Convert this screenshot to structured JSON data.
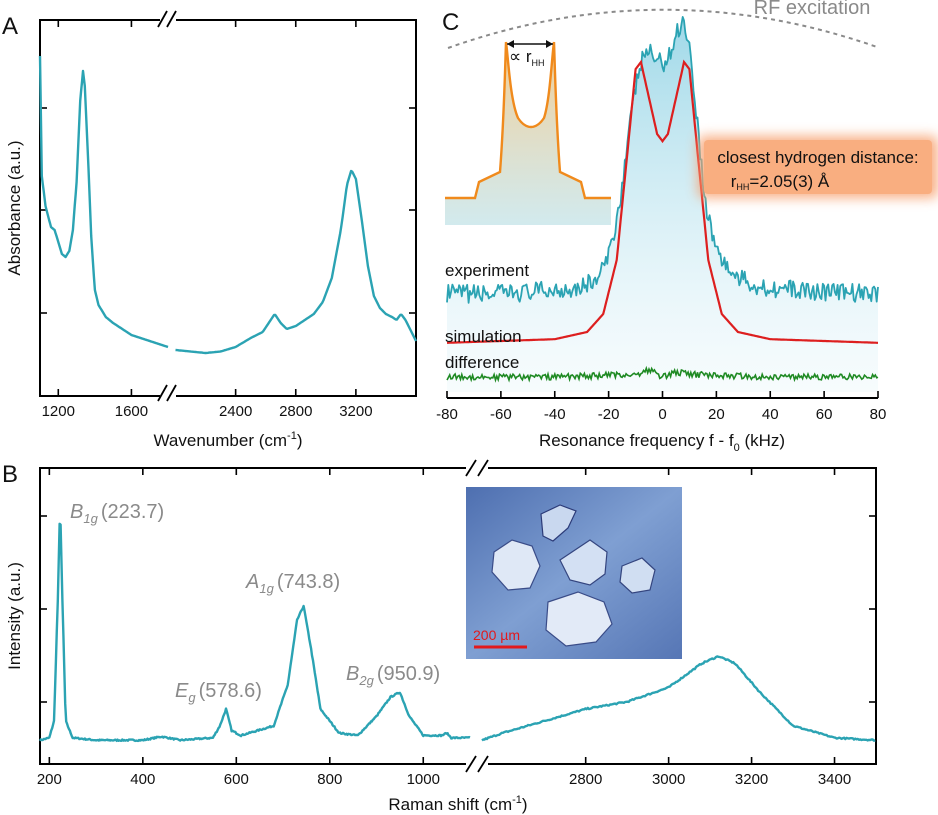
{
  "chart_data": [
    {
      "panel": "A",
      "type": "line",
      "xlabel": "Wavenumber (cm",
      "xlabel_sup": "-1",
      "xlabel_end": ")",
      "ylabel": "Absorbance (a.u.)",
      "xticks_left": [
        1200,
        1600
      ],
      "xticks_right": [
        2400,
        2800,
        3200
      ],
      "x_segments": [
        [
          1100,
          1800
        ],
        [
          1950,
          3600
        ]
      ],
      "color": "#2ba3b3",
      "points": [
        [
          1100,
          1.0
        ],
        [
          1110,
          0.6
        ],
        [
          1130,
          0.5
        ],
        [
          1160,
          0.43
        ],
        [
          1180,
          0.42
        ],
        [
          1200,
          0.38
        ],
        [
          1220,
          0.34
        ],
        [
          1240,
          0.33
        ],
        [
          1260,
          0.35
        ],
        [
          1280,
          0.42
        ],
        [
          1300,
          0.58
        ],
        [
          1320,
          0.85
        ],
        [
          1335,
          0.95
        ],
        [
          1345,
          0.9
        ],
        [
          1360,
          0.7
        ],
        [
          1380,
          0.4
        ],
        [
          1400,
          0.22
        ],
        [
          1420,
          0.17
        ],
        [
          1460,
          0.13
        ],
        [
          1500,
          0.11
        ],
        [
          1550,
          0.09
        ],
        [
          1600,
          0.07
        ],
        [
          1650,
          0.06
        ],
        [
          1700,
          0.05
        ],
        [
          1750,
          0.04
        ],
        [
          1800,
          0.03
        ],
        [
          2000,
          0.02
        ],
        [
          2100,
          0.015
        ],
        [
          2200,
          0.01
        ],
        [
          2300,
          0.015
        ],
        [
          2400,
          0.03
        ],
        [
          2500,
          0.06
        ],
        [
          2580,
          0.08
        ],
        [
          2620,
          0.11
        ],
        [
          2660,
          0.14
        ],
        [
          2700,
          0.11
        ],
        [
          2740,
          0.09
        ],
        [
          2800,
          0.1
        ],
        [
          2860,
          0.12
        ],
        [
          2920,
          0.14
        ],
        [
          2980,
          0.18
        ],
        [
          3040,
          0.26
        ],
        [
          3100,
          0.42
        ],
        [
          3140,
          0.57
        ],
        [
          3170,
          0.62
        ],
        [
          3200,
          0.59
        ],
        [
          3240,
          0.45
        ],
        [
          3280,
          0.3
        ],
        [
          3320,
          0.2
        ],
        [
          3360,
          0.16
        ],
        [
          3400,
          0.14
        ],
        [
          3440,
          0.13
        ],
        [
          3470,
          0.12
        ],
        [
          3500,
          0.14
        ],
        [
          3530,
          0.12
        ],
        [
          3560,
          0.09
        ],
        [
          3600,
          0.05
        ]
      ]
    },
    {
      "panel": "C",
      "type": "line",
      "xlabel": "Resonance frequency f - f",
      "xlabel_sub": "0",
      "xlabel_end": " (kHz)",
      "xlim": [
        -80,
        80
      ],
      "xticks": [
        -80,
        -60,
        -40,
        -20,
        0,
        20,
        40,
        60,
        80
      ],
      "series": [
        {
          "name": "experiment",
          "color": "#2ba3b3",
          "points": [
            [
              -80,
              0.26
            ],
            [
              -60,
              0.26
            ],
            [
              -40,
              0.27
            ],
            [
              -30,
              0.28
            ],
            [
              -24,
              0.3
            ],
            [
              -20,
              0.36
            ],
            [
              -16,
              0.5
            ],
            [
              -12,
              0.72
            ],
            [
              -9,
              0.86
            ],
            [
              -6,
              0.92
            ],
            [
              -3,
              0.9
            ],
            [
              0,
              0.88
            ],
            [
              3,
              0.91
            ],
            [
              6,
              0.98
            ],
            [
              8,
              1.0
            ],
            [
              10,
              0.93
            ],
            [
              13,
              0.72
            ],
            [
              16,
              0.5
            ],
            [
              20,
              0.38
            ],
            [
              26,
              0.31
            ],
            [
              35,
              0.28
            ],
            [
              50,
              0.27
            ],
            [
              80,
              0.26
            ]
          ]
        },
        {
          "name": "simulation",
          "color": "#dd1f1f",
          "points": [
            [
              -80,
              0.02
            ],
            [
              -40,
              0.03
            ],
            [
              -28,
              0.05
            ],
            [
              -22,
              0.1
            ],
            [
              -17,
              0.25
            ],
            [
              -13,
              0.55
            ],
            [
              -10,
              0.78
            ],
            [
              -8,
              0.8
            ],
            [
              -5,
              0.7
            ],
            [
              -2,
              0.6
            ],
            [
              0,
              0.58
            ],
            [
              2,
              0.6
            ],
            [
              5,
              0.7
            ],
            [
              8,
              0.8
            ],
            [
              10,
              0.78
            ],
            [
              13,
              0.55
            ],
            [
              17,
              0.25
            ],
            [
              22,
              0.1
            ],
            [
              28,
              0.05
            ],
            [
              40,
              0.03
            ],
            [
              80,
              0.02
            ]
          ]
        },
        {
          "name": "difference",
          "color": "#1f8a23",
          "points": [
            [
              -80,
              0.0
            ],
            [
              -40,
              0.0
            ],
            [
              -10,
              0.005
            ],
            [
              -5,
              0.015
            ],
            [
              0,
              0.0
            ],
            [
              5,
              0.01
            ],
            [
              10,
              0.005
            ],
            [
              40,
              0.0
            ],
            [
              80,
              0.0
            ]
          ]
        }
      ],
      "envelope_label": "RF excitation",
      "inset_label": "∝ r",
      "inset_label_sub": "HH",
      "callout_title": "closest hydrogen distance:",
      "callout_value_prefix": "r",
      "callout_value_sub": "HH",
      "callout_value_suffix": "=2.05(3) Å"
    },
    {
      "panel": "B",
      "type": "line",
      "xlabel": "Raman shift (cm",
      "xlabel_sup": "-1",
      "xlabel_end": ")",
      "ylabel": "Intensity (a.u.)",
      "xticks_left": [
        200,
        400,
        600,
        800,
        1000
      ],
      "xticks_right": [
        2800,
        3000,
        3200,
        3400
      ],
      "x_segments": [
        [
          180,
          1100
        ],
        [
          2550,
          3500
        ]
      ],
      "color": "#2ba3b3",
      "peaks": [
        {
          "symbol": "B",
          "sub": "1g",
          "value": "(223.7)",
          "x": 223.7
        },
        {
          "symbol": "E",
          "sub": "g",
          "value": "(578.6)",
          "x": 578.6
        },
        {
          "symbol": "A",
          "sub": "1g",
          "value": "(743.8)",
          "x": 743.8
        },
        {
          "symbol": "B",
          "sub": "2g",
          "value": "(950.9)",
          "x": 950.9
        }
      ],
      "points": [
        [
          180,
          0.02
        ],
        [
          200,
          0.03
        ],
        [
          210,
          0.1
        ],
        [
          218,
          0.6
        ],
        [
          223,
          1.0
        ],
        [
          228,
          0.6
        ],
        [
          235,
          0.1
        ],
        [
          250,
          0.03
        ],
        [
          300,
          0.02
        ],
        [
          400,
          0.02
        ],
        [
          440,
          0.035
        ],
        [
          480,
          0.02
        ],
        [
          550,
          0.03
        ],
        [
          565,
          0.08
        ],
        [
          578,
          0.15
        ],
        [
          590,
          0.06
        ],
        [
          610,
          0.04
        ],
        [
          680,
          0.08
        ],
        [
          710,
          0.25
        ],
        [
          730,
          0.52
        ],
        [
          744,
          0.58
        ],
        [
          760,
          0.4
        ],
        [
          780,
          0.15
        ],
        [
          820,
          0.05
        ],
        [
          860,
          0.04
        ],
        [
          900,
          0.12
        ],
        [
          930,
          0.2
        ],
        [
          950,
          0.22
        ],
        [
          970,
          0.12
        ],
        [
          1000,
          0.04
        ],
        [
          1040,
          0.04
        ],
        [
          1050,
          0.05
        ],
        [
          1060,
          0.03
        ],
        [
          1100,
          0.03
        ],
        [
          2550,
          0.02
        ],
        [
          2600,
          0.05
        ],
        [
          2700,
          0.1
        ],
        [
          2800,
          0.15
        ],
        [
          2900,
          0.18
        ],
        [
          3000,
          0.24
        ],
        [
          3080,
          0.34
        ],
        [
          3120,
          0.37
        ],
        [
          3160,
          0.34
        ],
        [
          3220,
          0.22
        ],
        [
          3300,
          0.08
        ],
        [
          3400,
          0.03
        ],
        [
          3500,
          0.02
        ]
      ],
      "inset_scale_label": "200 µm"
    }
  ],
  "panel_labels": {
    "a": "A",
    "b": "B",
    "c": "C"
  }
}
